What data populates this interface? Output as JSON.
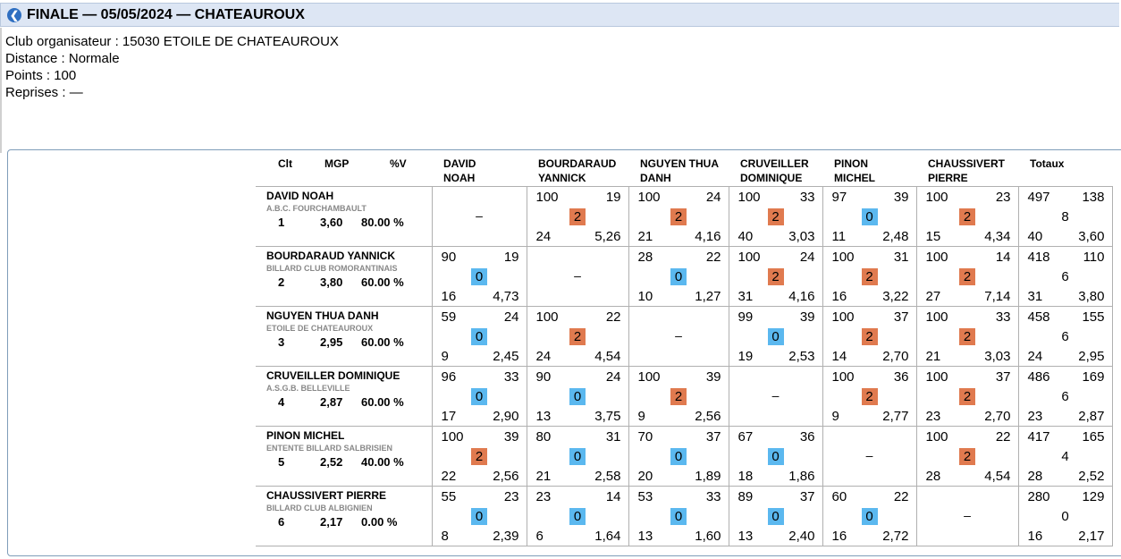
{
  "header": {
    "title": "FINALE — 05/05/2024 — CHATEAUROUX",
    "icon": "back-arrow-icon"
  },
  "info": {
    "club": "Club organisateur : 15030 ETOILE DE CHATEAUROUX",
    "distance": "Distance : Normale",
    "points": "Points : 100",
    "reprises": "Reprises : —"
  },
  "colors": {
    "win": "#e07a4f",
    "loss": "#5bb8ef",
    "header_bg": "#dde6f4",
    "icon": "#2f6fc1"
  },
  "table": {
    "columns": {
      "clt": "Clt",
      "mgp": "MGP",
      "pv": "%V",
      "totaux": "Totaux"
    },
    "opponents": [
      [
        "DAVID",
        "NOAH"
      ],
      [
        "BOURDARAUD",
        "YANNICK"
      ],
      [
        "NGUYEN THUA",
        "DANH"
      ],
      [
        "CRUVEILLER",
        "DOMINIQUE"
      ],
      [
        "PINON",
        "MICHEL"
      ],
      [
        "CHAUSSIVERT",
        "PIERRE"
      ]
    ],
    "empty_mark": "–",
    "rows": [
      {
        "name": "DAVID NOAH",
        "club": "A.B.C. FOURCHAMBAULT",
        "clt": "1",
        "mgp": "3,60",
        "pv": "80.00 %",
        "cells": [
          null,
          {
            "tl": "100",
            "tr": "19",
            "mid": "2",
            "bl": "24",
            "br": "5,26"
          },
          {
            "tl": "100",
            "tr": "24",
            "mid": "2",
            "bl": "21",
            "br": "4,16"
          },
          {
            "tl": "100",
            "tr": "33",
            "mid": "2",
            "bl": "40",
            "br": "3,03"
          },
          {
            "tl": "97",
            "tr": "39",
            "mid": "0",
            "bl": "11",
            "br": "2,48"
          },
          {
            "tl": "100",
            "tr": "23",
            "mid": "2",
            "bl": "15",
            "br": "4,34"
          }
        ],
        "total": {
          "tl": "497",
          "tr": "138",
          "mid": "8",
          "bl": "40",
          "br": "3,60"
        }
      },
      {
        "name": "BOURDARAUD YANNICK",
        "club": "BILLARD CLUB ROMORANTINAIS",
        "clt": "2",
        "mgp": "3,80",
        "pv": "60.00 %",
        "cells": [
          {
            "tl": "90",
            "tr": "19",
            "mid": "0",
            "bl": "16",
            "br": "4,73"
          },
          null,
          {
            "tl": "28",
            "tr": "22",
            "mid": "0",
            "bl": "10",
            "br": "1,27"
          },
          {
            "tl": "100",
            "tr": "24",
            "mid": "2",
            "bl": "31",
            "br": "4,16"
          },
          {
            "tl": "100",
            "tr": "31",
            "mid": "2",
            "bl": "16",
            "br": "3,22"
          },
          {
            "tl": "100",
            "tr": "14",
            "mid": "2",
            "bl": "27",
            "br": "7,14"
          }
        ],
        "total": {
          "tl": "418",
          "tr": "110",
          "mid": "6",
          "bl": "31",
          "br": "3,80"
        }
      },
      {
        "name": "NGUYEN THUA DANH",
        "club": "ETOILE DE CHATEAUROUX",
        "clt": "3",
        "mgp": "2,95",
        "pv": "60.00 %",
        "cells": [
          {
            "tl": "59",
            "tr": "24",
            "mid": "0",
            "bl": "9",
            "br": "2,45"
          },
          {
            "tl": "100",
            "tr": "22",
            "mid": "2",
            "bl": "24",
            "br": "4,54"
          },
          null,
          {
            "tl": "99",
            "tr": "39",
            "mid": "0",
            "bl": "19",
            "br": "2,53"
          },
          {
            "tl": "100",
            "tr": "37",
            "mid": "2",
            "bl": "14",
            "br": "2,70"
          },
          {
            "tl": "100",
            "tr": "33",
            "mid": "2",
            "bl": "21",
            "br": "3,03"
          }
        ],
        "total": {
          "tl": "458",
          "tr": "155",
          "mid": "6",
          "bl": "24",
          "br": "2,95"
        }
      },
      {
        "name": "CRUVEILLER DOMINIQUE",
        "club": "A.S.G.B. BELLEVILLE",
        "clt": "4",
        "mgp": "2,87",
        "pv": "60.00 %",
        "cells": [
          {
            "tl": "96",
            "tr": "33",
            "mid": "0",
            "bl": "17",
            "br": "2,90"
          },
          {
            "tl": "90",
            "tr": "24",
            "mid": "0",
            "bl": "13",
            "br": "3,75"
          },
          {
            "tl": "100",
            "tr": "39",
            "mid": "2",
            "bl": "9",
            "br": "2,56"
          },
          null,
          {
            "tl": "100",
            "tr": "36",
            "mid": "2",
            "bl": "9",
            "br": "2,77"
          },
          {
            "tl": "100",
            "tr": "37",
            "mid": "2",
            "bl": "23",
            "br": "2,70"
          }
        ],
        "total": {
          "tl": "486",
          "tr": "169",
          "mid": "6",
          "bl": "23",
          "br": "2,87"
        }
      },
      {
        "name": "PINON MICHEL",
        "club": "ENTENTE BILLARD SALBRISIEN",
        "clt": "5",
        "mgp": "2,52",
        "pv": "40.00 %",
        "cells": [
          {
            "tl": "100",
            "tr": "39",
            "mid": "2",
            "bl": "22",
            "br": "2,56"
          },
          {
            "tl": "80",
            "tr": "31",
            "mid": "0",
            "bl": "21",
            "br": "2,58"
          },
          {
            "tl": "70",
            "tr": "37",
            "mid": "0",
            "bl": "20",
            "br": "1,89"
          },
          {
            "tl": "67",
            "tr": "36",
            "mid": "0",
            "bl": "18",
            "br": "1,86"
          },
          null,
          {
            "tl": "100",
            "tr": "22",
            "mid": "2",
            "bl": "28",
            "br": "4,54"
          }
        ],
        "total": {
          "tl": "417",
          "tr": "165",
          "mid": "4",
          "bl": "28",
          "br": "2,52"
        }
      },
      {
        "name": "CHAUSSIVERT PIERRE",
        "club": "BILLARD CLUB ALBIGNIEN",
        "clt": "6",
        "mgp": "2,17",
        "pv": "0.00 %",
        "cells": [
          {
            "tl": "55",
            "tr": "23",
            "mid": "0",
            "bl": "8",
            "br": "2,39"
          },
          {
            "tl": "23",
            "tr": "14",
            "mid": "0",
            "bl": "6",
            "br": "1,64"
          },
          {
            "tl": "53",
            "tr": "33",
            "mid": "0",
            "bl": "13",
            "br": "1,60"
          },
          {
            "tl": "89",
            "tr": "37",
            "mid": "0",
            "bl": "13",
            "br": "2,40"
          },
          {
            "tl": "60",
            "tr": "22",
            "mid": "0",
            "bl": "16",
            "br": "2,72"
          },
          null
        ],
        "total": {
          "tl": "280",
          "tr": "129",
          "mid": "0",
          "bl": "16",
          "br": "2,17"
        }
      }
    ]
  }
}
